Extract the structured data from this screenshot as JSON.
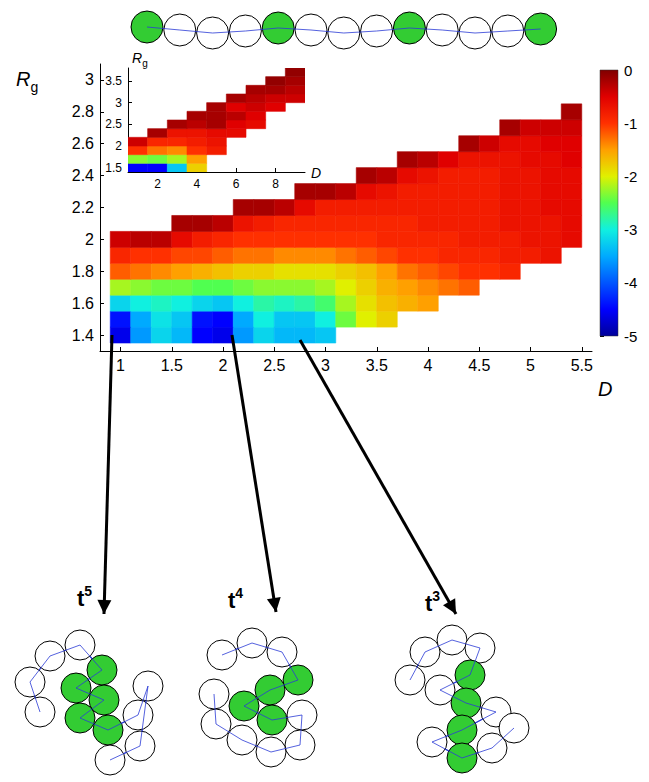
{
  "chart_data": [
    {
      "type": "heatmap",
      "xlabel": "D",
      "ylabel": "Rg",
      "grid": false,
      "x": [
        1,
        1.2,
        1.4,
        1.6,
        1.8,
        2,
        2.2,
        2.4,
        2.6,
        2.8,
        3,
        3.2,
        3.4,
        3.6,
        3.8,
        4,
        4.2,
        4.4,
        4.6,
        4.8,
        5,
        5.2,
        5.4
      ],
      "y": [
        1.4,
        1.5,
        1.6,
        1.7,
        1.8,
        1.9,
        2,
        2.1,
        2.2,
        2.3,
        2.4,
        2.5,
        2.6,
        2.7,
        2.8
      ],
      "z": [
        [
          -4.6,
          -3.6,
          -3.2,
          -3.4,
          -4.5,
          -4.6,
          -3.6,
          -3.2,
          -3.4,
          -3.4,
          -3.3,
          null,
          null,
          null,
          null,
          null,
          null,
          null,
          null,
          null,
          null,
          null,
          null
        ],
        [
          -4.4,
          -3.5,
          -3.1,
          -3.3,
          -4.4,
          -4.5,
          -3.5,
          -3.0,
          -3.3,
          -3.3,
          -3.0,
          -2.4,
          -2.0,
          -1.8,
          null,
          null,
          null,
          null,
          null,
          null,
          null,
          null,
          null
        ],
        [
          -3.2,
          -3.0,
          -2.9,
          -3.0,
          -3.2,
          -3.3,
          -3.0,
          -2.8,
          -2.9,
          -2.8,
          -2.6,
          -2.2,
          -1.9,
          -1.7,
          -1.6,
          -1.5,
          null,
          null,
          null,
          null,
          null,
          null,
          null
        ],
        [
          -2.2,
          -2.3,
          -2.4,
          -2.4,
          -2.5,
          -2.5,
          -2.4,
          -2.3,
          -2.3,
          -2.3,
          -2.2,
          -2.0,
          -1.8,
          -1.6,
          -1.5,
          -1.4,
          -1.3,
          -1.2,
          null,
          null,
          null,
          null,
          null
        ],
        [
          -1.2,
          -1.3,
          -1.4,
          -1.5,
          -1.6,
          -1.7,
          -1.8,
          -1.8,
          -1.9,
          -1.9,
          -1.9,
          -1.8,
          -1.7,
          -1.5,
          -1.3,
          -1.2,
          -1.1,
          -1.0,
          -1.0,
          -0.9,
          null,
          null,
          null
        ],
        [
          -0.9,
          -1.0,
          -1.0,
          -1.1,
          -1.1,
          -1.2,
          -1.3,
          -1.3,
          -1.4,
          -1.4,
          -1.4,
          -1.3,
          -1.2,
          -1.1,
          -1.0,
          -1.0,
          -0.9,
          -0.9,
          -0.9,
          -0.8,
          -0.8,
          -0.7,
          null
        ],
        [
          -0.4,
          -0.3,
          -0.3,
          -0.6,
          -0.8,
          -0.9,
          -1.0,
          -1.0,
          -1.0,
          -1.0,
          -1.0,
          -1.0,
          -1.0,
          -0.9,
          -0.9,
          -0.9,
          -0.9,
          -0.8,
          -0.8,
          -0.8,
          -0.7,
          -0.7,
          -0.6
        ],
        [
          null,
          null,
          null,
          -0.2,
          -0.2,
          -0.3,
          -0.7,
          -0.8,
          -0.9,
          -0.9,
          -0.9,
          -0.9,
          -0.9,
          -0.9,
          -0.9,
          -0.8,
          -0.8,
          -0.8,
          -0.8,
          -0.7,
          -0.7,
          -0.7,
          -0.6
        ],
        [
          null,
          null,
          null,
          null,
          null,
          null,
          -0.2,
          -0.2,
          -0.3,
          -0.6,
          -0.8,
          -0.8,
          -0.8,
          -0.8,
          -0.8,
          -0.8,
          -0.8,
          -0.8,
          -0.8,
          -0.7,
          -0.7,
          -0.6,
          -0.6
        ],
        [
          null,
          null,
          null,
          null,
          null,
          null,
          null,
          null,
          null,
          -0.2,
          -0.2,
          -0.3,
          -0.6,
          -0.7,
          -0.8,
          -0.8,
          -0.8,
          -0.8,
          -0.8,
          -0.7,
          -0.7,
          -0.6,
          -0.6
        ],
        [
          null,
          null,
          null,
          null,
          null,
          null,
          null,
          null,
          null,
          null,
          null,
          null,
          -0.2,
          -0.3,
          -0.6,
          -0.7,
          -0.8,
          -0.8,
          -0.8,
          -0.7,
          -0.7,
          -0.6,
          -0.6
        ],
        [
          null,
          null,
          null,
          null,
          null,
          null,
          null,
          null,
          null,
          null,
          null,
          null,
          null,
          null,
          -0.2,
          -0.3,
          -0.5,
          -0.7,
          -0.7,
          -0.7,
          -0.6,
          -0.6,
          -0.5
        ],
        [
          null,
          null,
          null,
          null,
          null,
          null,
          null,
          null,
          null,
          null,
          null,
          null,
          null,
          null,
          null,
          null,
          null,
          -0.2,
          -0.4,
          -0.6,
          -0.6,
          -0.5,
          -0.5
        ],
        [
          null,
          null,
          null,
          null,
          null,
          null,
          null,
          null,
          null,
          null,
          null,
          null,
          null,
          null,
          null,
          null,
          null,
          null,
          null,
          -0.2,
          -0.4,
          -0.4,
          -0.4
        ],
        [
          null,
          null,
          null,
          null,
          null,
          null,
          null,
          null,
          null,
          null,
          null,
          null,
          null,
          null,
          null,
          null,
          null,
          null,
          null,
          null,
          null,
          null,
          -0.2
        ]
      ],
      "xlim": [
        0.8,
        5.6
      ],
      "xticks": [
        1,
        1.5,
        2,
        2.5,
        3,
        3.5,
        4,
        4.5,
        5,
        5.5
      ],
      "ylim": [
        1.3,
        3.1
      ],
      "yticks": [
        1.4,
        1.6,
        1.8,
        2,
        2.2,
        2.4,
        2.6,
        2.8,
        3
      ],
      "colorbar": {
        "range": [
          -5,
          0
        ],
        "ticks": [
          0,
          -1,
          -2,
          -3,
          -4,
          -5
        ]
      }
    },
    {
      "type": "heatmap",
      "xlabel": "D",
      "ylabel": "Rg",
      "grid": false,
      "x": [
        1,
        2,
        3,
        4,
        5,
        6,
        7,
        8,
        9
      ],
      "y": [
        1.5,
        1.7,
        1.9,
        2.1,
        2.3,
        2.5,
        2.7,
        2.9,
        3.1,
        3.3,
        3.5,
        3.7
      ],
      "z": [
        [
          -4.5,
          -4.5,
          -3.3,
          -1.8,
          null,
          null,
          null,
          null,
          null
        ],
        [
          -2.3,
          -2.4,
          -2.2,
          -1.5,
          null,
          null,
          null,
          null,
          null
        ],
        [
          -1.0,
          -1.3,
          -1.4,
          -1.0,
          -0.8,
          null,
          null,
          null,
          null
        ],
        [
          -0.4,
          -0.9,
          -0.9,
          -0.8,
          -0.7,
          null,
          null,
          null,
          null
        ],
        [
          null,
          -0.2,
          -0.7,
          -0.7,
          -0.6,
          -0.6,
          null,
          null,
          null
        ],
        [
          null,
          null,
          -0.2,
          -0.3,
          -0.2,
          -0.5,
          -0.6,
          null,
          null
        ],
        [
          null,
          null,
          null,
          -0.2,
          -0.2,
          -0.3,
          -0.5,
          null,
          null
        ],
        [
          null,
          null,
          null,
          null,
          -0.2,
          -0.5,
          -0.4,
          -0.5,
          null
        ],
        [
          null,
          null,
          null,
          null,
          null,
          -0.2,
          -0.3,
          -0.4,
          -0.4
        ],
        [
          null,
          null,
          null,
          null,
          null,
          null,
          -0.2,
          -0.2,
          -0.3
        ],
        [
          null,
          null,
          null,
          null,
          null,
          null,
          null,
          -0.1,
          -0.2
        ],
        [
          null,
          null,
          null,
          null,
          null,
          null,
          null,
          null,
          -0.1
        ]
      ],
      "xlim": [
        0.5,
        9.5
      ],
      "xticks": [
        2,
        4,
        6,
        8
      ],
      "ylim": [
        1.4,
        3.8
      ],
      "yticks": [
        1.5,
        2,
        2.5,
        3,
        3.5
      ]
    }
  ],
  "structures": [
    "t5",
    "t4",
    "t3"
  ]
}
